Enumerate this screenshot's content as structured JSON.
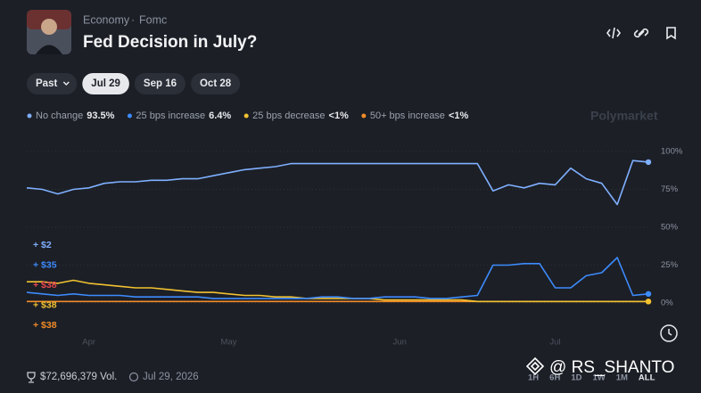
{
  "header": {
    "breadcrumb": [
      "Economy",
      "Fomc"
    ],
    "separator": "·",
    "title": "Fed Decision in July?"
  },
  "tabs": {
    "items": [
      "Past",
      "Jul 29",
      "Sep 16",
      "Oct 28"
    ],
    "selected": 1
  },
  "brand": "Polymarket",
  "trade_tags": [
    {
      "label": "+ $2",
      "color": "#7fb0ff"
    },
    {
      "label": "+ $35",
      "color": "#3d8bfd"
    },
    {
      "label": "+ $38",
      "color": "#e5484d"
    },
    {
      "label": "+ $38",
      "color": "#f2c230"
    },
    {
      "label": "+ $38",
      "color": "#f28c28"
    }
  ],
  "chart_data": {
    "type": "line",
    "categories": [
      null,
      null,
      null,
      null,
      "Apr",
      null,
      null,
      null,
      null,
      null,
      null,
      null,
      null,
      "May",
      null,
      null,
      null,
      null,
      null,
      null,
      null,
      null,
      null,
      null,
      "Jun",
      null,
      null,
      null,
      null,
      null,
      null,
      null,
      null,
      null,
      "Jul",
      null,
      null,
      null,
      null,
      null,
      null
    ],
    "series": [
      {
        "name": "No change",
        "odds": "93.5%",
        "color": "#7fb0ff",
        "values": [
          76,
          75,
          72,
          75,
          76,
          79,
          80,
          80,
          81,
          81,
          82,
          82,
          84,
          86,
          88,
          89,
          90,
          92,
          92,
          92,
          92,
          92,
          92,
          92,
          92,
          92,
          92,
          92,
          92,
          92,
          74,
          78,
          76,
          79,
          78,
          89,
          82,
          79,
          65,
          94,
          93
        ]
      },
      {
        "name": "25 bps increase",
        "odds": "6.4%",
        "color": "#3d8bfd",
        "values": [
          7,
          6,
          5,
          6,
          5,
          5,
          5,
          4,
          4,
          4,
          4,
          4,
          3,
          3,
          3,
          3,
          3,
          3,
          3,
          4,
          4,
          3,
          3,
          4,
          4,
          4,
          3,
          3,
          4,
          5,
          25,
          25,
          26,
          26,
          10,
          10,
          18,
          20,
          30,
          5,
          6
        ]
      },
      {
        "name": "25 bps decrease",
        "odds": "<1%",
        "color": "#f2c230",
        "values": [
          14,
          14,
          13,
          15,
          13,
          12,
          11,
          10,
          10,
          9,
          8,
          7,
          7,
          6,
          5,
          5,
          4,
          4,
          3,
          3,
          3,
          3,
          3,
          2,
          2,
          2,
          2,
          2,
          2,
          1,
          1,
          1,
          1,
          1,
          1,
          1,
          1,
          1,
          1,
          1,
          1
        ]
      },
      {
        "name": "50+ bps increase",
        "odds": "<1%",
        "color": "#f28c28",
        "values": [
          1,
          1,
          1,
          1,
          1,
          1,
          1,
          1,
          1,
          1,
          1,
          1,
          1,
          1,
          1,
          1,
          1,
          1,
          1,
          1,
          1,
          1,
          1,
          1,
          1,
          1,
          1,
          1,
          1,
          1,
          1,
          1,
          1,
          1,
          1,
          1,
          1,
          1,
          1,
          1,
          1
        ]
      }
    ],
    "ylim": [
      0,
      100
    ],
    "yticks": [
      {
        "value": 0,
        "label": "0%"
      },
      {
        "value": 25,
        "label": "25%"
      },
      {
        "value": 50,
        "label": "50%"
      },
      {
        "value": 75,
        "label": "75%"
      },
      {
        "value": 100,
        "label": "100%"
      }
    ],
    "grid": true
  },
  "ranges": [
    "1H",
    "6H",
    "1D",
    "1W",
    "1M",
    "ALL"
  ],
  "footer": {
    "volume": "$72,696,379 Vol.",
    "date": "Jul 29, 2026"
  },
  "watermark": "@ RS_SHANTO"
}
